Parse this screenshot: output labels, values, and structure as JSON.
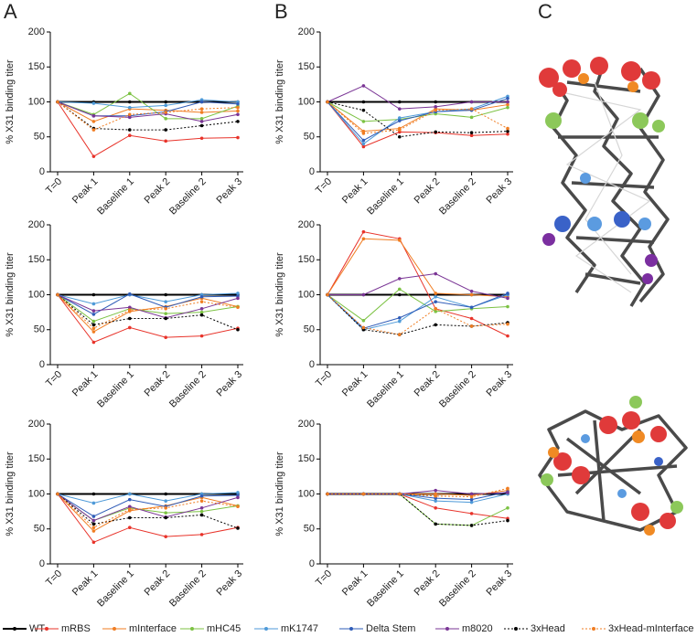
{
  "panel_labels": [
    "A",
    "B",
    "C"
  ],
  "legend": [
    {
      "name": "WT",
      "color": "#000000",
      "dash": false
    },
    {
      "name": "mRBS",
      "color": "#e8332a",
      "dash": false
    },
    {
      "name": "mInterface",
      "color": "#f07d22",
      "dash": false
    },
    {
      "name": "mHC45",
      "color": "#7cc243",
      "dash": false
    },
    {
      "name": "mK1747",
      "color": "#4e9ad8",
      "dash": false
    },
    {
      "name": "Delta Stem",
      "color": "#2f5cb8",
      "dash": false
    },
    {
      "name": "m8020",
      "color": "#7a3595",
      "dash": false
    },
    {
      "name": "3xHead",
      "color": "#000000",
      "dash": true
    },
    {
      "name": "3xHead-mInterface",
      "color": "#f07d22",
      "dash": true
    }
  ],
  "chart_data": [
    {
      "type": "line",
      "y_label": "% X31 binding titer",
      "categories": [
        "T=0",
        "Peak 1",
        "Baseline 1",
        "Peak 2",
        "Baseline 2",
        "Peak 3"
      ],
      "ylim": [
        0,
        200
      ],
      "yticks": [
        0,
        50,
        100,
        150,
        200
      ],
      "series": [
        {
          "values": [
            100,
            100,
            100,
            100,
            100,
            100
          ]
        },
        {
          "values": [
            100,
            22,
            52,
            44,
            48,
            49
          ]
        },
        {
          "values": [
            100,
            72,
            90,
            88,
            85,
            87
          ]
        },
        {
          "values": [
            100,
            82,
            112,
            76,
            76,
            94
          ]
        },
        {
          "values": [
            100,
            98,
            92,
            95,
            103,
            100
          ]
        },
        {
          "values": [
            100,
            80,
            80,
            86,
            100,
            97
          ]
        },
        {
          "values": [
            100,
            80,
            78,
            83,
            72,
            82
          ]
        },
        {
          "values": [
            100,
            62,
            60,
            60,
            66,
            72
          ]
        },
        {
          "values": [
            100,
            60,
            82,
            85,
            90,
            92
          ]
        }
      ]
    },
    {
      "type": "line",
      "y_label": "% X31 binding titer",
      "categories": [
        "T=0",
        "Peak 1",
        "Baseline 1",
        "Peak 2",
        "Baseline 2",
        "Peak 3"
      ],
      "ylim": [
        0,
        200
      ],
      "yticks": [
        0,
        50,
        100,
        150,
        200
      ],
      "series": [
        {
          "values": [
            100,
            100,
            100,
            100,
            100,
            100
          ]
        },
        {
          "values": [
            100,
            36,
            57,
            56,
            52,
            54
          ]
        },
        {
          "values": [
            100,
            58,
            62,
            90,
            88,
            96
          ]
        },
        {
          "values": [
            100,
            72,
            75,
            83,
            78,
            92
          ]
        },
        {
          "values": [
            100,
            40,
            77,
            86,
            90,
            108
          ]
        },
        {
          "values": [
            100,
            45,
            73,
            86,
            88,
            105
          ]
        },
        {
          "values": [
            100,
            123,
            90,
            93,
            100,
            100
          ]
        },
        {
          "values": [
            100,
            88,
            50,
            57,
            56,
            58
          ]
        },
        {
          "values": [
            100,
            55,
            60,
            88,
            90,
            62
          ]
        }
      ]
    },
    {
      "type": "line",
      "y_label": "% X31 binding titer",
      "categories": [
        "T=0",
        "Peak 1",
        "Baseline 1",
        "Peak 2",
        "Baseline 2",
        "Peak 3"
      ],
      "ylim": [
        0,
        200
      ],
      "yticks": [
        0,
        50,
        100,
        150,
        200
      ],
      "series": [
        {
          "values": [
            100,
            100,
            100,
            100,
            100,
            100
          ]
        },
        {
          "values": [
            100,
            32,
            53,
            39,
            41,
            52
          ]
        },
        {
          "values": [
            100,
            47,
            76,
            83,
            95,
            83
          ]
        },
        {
          "values": [
            100,
            62,
            80,
            73,
            75,
            83
          ]
        },
        {
          "values": [
            100,
            87,
            100,
            90,
            100,
            102
          ]
        },
        {
          "values": [
            100,
            72,
            101,
            82,
            97,
            98
          ]
        },
        {
          "values": [
            100,
            77,
            82,
            67,
            80,
            95
          ]
        },
        {
          "values": [
            100,
            57,
            66,
            66,
            71,
            50
          ]
        },
        {
          "values": [
            100,
            52,
            78,
            80,
            90,
            82
          ]
        }
      ]
    },
    {
      "type": "line",
      "y_label": "% X31 binding titer",
      "categories": [
        "T=0",
        "Peak 1",
        "Baseline 1",
        "Peak 2",
        "Baseline 2",
        "Peak 3"
      ],
      "ylim": [
        0,
        200
      ],
      "yticks": [
        0,
        50,
        100,
        150,
        200
      ],
      "series": [
        {
          "values": [
            100,
            100,
            100,
            100,
            100,
            100
          ]
        },
        {
          "values": [
            100,
            190,
            180,
            80,
            66,
            41
          ]
        },
        {
          "values": [
            100,
            180,
            178,
            102,
            100,
            97
          ]
        },
        {
          "values": [
            100,
            63,
            108,
            76,
            80,
            83
          ]
        },
        {
          "values": [
            100,
            50,
            62,
            97,
            82,
            100
          ]
        },
        {
          "values": [
            100,
            52,
            67,
            90,
            82,
            102
          ]
        },
        {
          "values": [
            100,
            100,
            123,
            130,
            105,
            95
          ]
        },
        {
          "values": [
            100,
            50,
            43,
            57,
            55,
            60
          ]
        },
        {
          "values": [
            100,
            53,
            43,
            80,
            55,
            58
          ]
        }
      ]
    },
    {
      "type": "line",
      "y_label": "% X31 binding titer",
      "categories": [
        "T=0",
        "Peak 1",
        "Baseline 1",
        "Peak 2",
        "Baseline 2",
        "Peak 3"
      ],
      "ylim": [
        0,
        200
      ],
      "yticks": [
        0,
        50,
        100,
        150,
        200
      ],
      "series": [
        {
          "values": [
            100,
            100,
            100,
            100,
            100,
            100
          ]
        },
        {
          "values": [
            100,
            31,
            52,
            39,
            42,
            52
          ]
        },
        {
          "values": [
            100,
            47,
            76,
            83,
            95,
            83
          ]
        },
        {
          "values": [
            100,
            62,
            80,
            73,
            75,
            83
          ]
        },
        {
          "values": [
            100,
            87,
            100,
            90,
            100,
            102
          ]
        },
        {
          "values": [
            100,
            68,
            92,
            82,
            97,
            98
          ]
        },
        {
          "values": [
            100,
            62,
            82,
            67,
            80,
            95
          ]
        },
        {
          "values": [
            100,
            57,
            66,
            66,
            70,
            51
          ]
        },
        {
          "values": [
            100,
            52,
            78,
            80,
            90,
            82
          ]
        }
      ]
    },
    {
      "type": "line",
      "y_label": "% X31 binding titer",
      "categories": [
        "T=0",
        "Peak 1",
        "Baseline 1",
        "Peak 2",
        "Baseline 2",
        "Peak 3"
      ],
      "ylim": [
        0,
        200
      ],
      "yticks": [
        0,
        50,
        100,
        150,
        200
      ],
      "series": [
        {
          "values": [
            100,
            100,
            100,
            100,
            100,
            100
          ]
        },
        {
          "values": [
            100,
            100,
            100,
            80,
            72,
            65
          ]
        },
        {
          "values": [
            100,
            100,
            100,
            100,
            98,
            105
          ]
        },
        {
          "values": [
            100,
            100,
            100,
            57,
            55,
            80
          ]
        },
        {
          "values": [
            100,
            100,
            100,
            90,
            88,
            100
          ]
        },
        {
          "values": [
            100,
            100,
            100,
            94,
            92,
            103
          ]
        },
        {
          "values": [
            100,
            100,
            100,
            105,
            100,
            102
          ]
        },
        {
          "values": [
            100,
            100,
            100,
            57,
            55,
            62
          ]
        },
        {
          "values": [
            100,
            100,
            100,
            97,
            96,
            108
          ]
        }
      ]
    }
  ]
}
